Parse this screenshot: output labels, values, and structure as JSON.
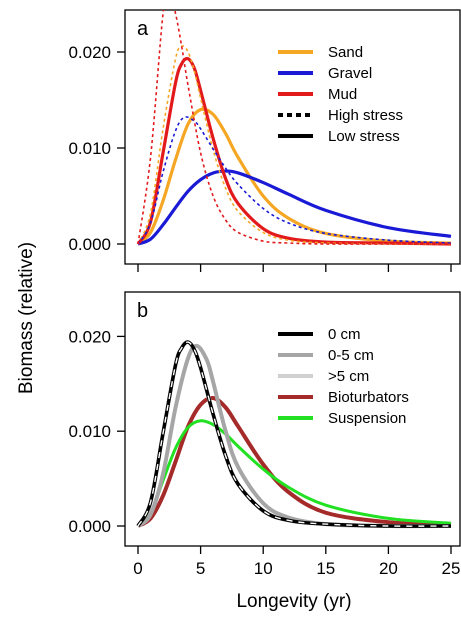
{
  "chart_data": [
    {
      "type": "line",
      "panel_label": "a",
      "xlim": [
        0,
        25
      ],
      "ylim": [
        0,
        0.025
      ],
      "xticks": [
        "0",
        "5",
        "10",
        "15",
        "20",
        "25"
      ],
      "xtick_values": [
        0,
        5,
        10,
        15,
        20,
        25
      ],
      "yticks": [
        "0.000",
        "0.010",
        "0.020"
      ],
      "ytick_values": [
        0,
        0.01,
        0.02
      ],
      "x_tick_labels_shown": false,
      "legend": [
        {
          "label": "Sand",
          "color": "#f5a623",
          "style": "solid"
        },
        {
          "label": "Gravel",
          "color": "#1a1ad6",
          "style": "solid"
        },
        {
          "label": "Mud",
          "color": "#e31a1c",
          "style": "solid"
        },
        {
          "label": "High stress",
          "color": "#000000",
          "style": "dashed"
        },
        {
          "label": "Low stress",
          "color": "#000000",
          "style": "solid"
        }
      ],
      "legend_position": "top-right",
      "series": [
        {
          "name": "Sand",
          "stress": "low",
          "color": "#f5a623",
          "dash": false,
          "width": 3.2,
          "x": [
            0,
            1,
            2,
            3,
            4,
            5,
            6,
            7,
            8,
            10,
            12,
            15,
            20,
            25
          ],
          "y": [
            0,
            0.0012,
            0.0045,
            0.0088,
            0.0125,
            0.014,
            0.0135,
            0.0115,
            0.009,
            0.005,
            0.0027,
            0.0011,
            0.0003,
            0.0001
          ]
        },
        {
          "name": "Gravel",
          "stress": "low",
          "color": "#1a1ad6",
          "dash": false,
          "width": 3.2,
          "x": [
            0,
            1,
            2,
            3,
            4,
            5,
            6,
            7,
            8,
            10,
            12,
            15,
            20,
            25
          ],
          "y": [
            0,
            0.0005,
            0.002,
            0.0038,
            0.0055,
            0.0067,
            0.0074,
            0.0076,
            0.0074,
            0.0064,
            0.0052,
            0.0035,
            0.0017,
            0.0008
          ]
        },
        {
          "name": "Mud",
          "stress": "low",
          "color": "#e31a1c",
          "dash": false,
          "width": 3.2,
          "x": [
            0,
            1,
            2,
            3,
            3.5,
            4,
            4.5,
            5,
            6,
            7,
            8,
            10,
            12,
            15,
            20,
            25
          ],
          "y": [
            0,
            0.0023,
            0.0095,
            0.0168,
            0.0188,
            0.0193,
            0.0183,
            0.016,
            0.011,
            0.0068,
            0.0042,
            0.0016,
            0.0006,
            0.0002,
            0.0001,
            0.0
          ]
        },
        {
          "name": "Sand",
          "stress": "high",
          "color": "#f5a623",
          "dash": true,
          "width": 1.6,
          "x": [
            0,
            1,
            2,
            3,
            3.5,
            4,
            4.5,
            5,
            6,
            7,
            8,
            10,
            12,
            15,
            20,
            25
          ],
          "y": [
            0,
            0.0032,
            0.012,
            0.0193,
            0.0206,
            0.02,
            0.018,
            0.0152,
            0.0098,
            0.0058,
            0.0034,
            0.0012,
            0.0004,
            0.0001,
            0.0,
            0.0
          ]
        },
        {
          "name": "Gravel",
          "stress": "high",
          "color": "#1a1ad6",
          "dash": true,
          "width": 1.6,
          "x": [
            0,
            1,
            2,
            3,
            3.7,
            4.5,
            5,
            6,
            7,
            8,
            10,
            12,
            15,
            20,
            25
          ],
          "y": [
            0,
            0.0022,
            0.0075,
            0.0118,
            0.0132,
            0.0128,
            0.012,
            0.0099,
            0.0079,
            0.0062,
            0.0037,
            0.0022,
            0.0011,
            0.0004,
            0.0001
          ]
        },
        {
          "name": "Mud",
          "stress": "high",
          "color": "#e31a1c",
          "dash": true,
          "width": 1.6,
          "x": [
            0,
            1,
            2,
            2.5,
            3,
            3.5,
            4,
            5,
            6,
            7,
            8,
            10,
            12,
            15,
            20,
            25
          ],
          "y": [
            0,
            0.009,
            0.024,
            0.0262,
            0.024,
            0.0205,
            0.0165,
            0.0095,
            0.005,
            0.0025,
            0.0012,
            0.0003,
            0.0001,
            0.0,
            0.0,
            0.0
          ]
        }
      ]
    },
    {
      "type": "line",
      "panel_label": "b",
      "xlim": [
        0,
        25
      ],
      "ylim": [
        0,
        0.025
      ],
      "xticks": [
        "0",
        "5",
        "10",
        "15",
        "20",
        "25"
      ],
      "xtick_values": [
        0,
        5,
        10,
        15,
        20,
        25
      ],
      "yticks": [
        "0.000",
        "0.010",
        "0.020"
      ],
      "ytick_values": [
        0,
        0.01,
        0.02
      ],
      "x_tick_labels_shown": true,
      "xlabel": "Longevity (yr)",
      "legend": [
        {
          "label": "0 cm",
          "color": "#000000",
          "style": "solid"
        },
        {
          "label": "0-5 cm",
          "color": "#a6a6a6",
          "style": "solid"
        },
        {
          "label": ">5 cm",
          "color": "#d0d0d0",
          "style": "solid"
        },
        {
          "label": "Bioturbators",
          "color": "#a52a2a",
          "style": "solid"
        },
        {
          "label": "Suspension",
          "color": "#22e022",
          "style": "solid"
        }
      ],
      "legend_position": "top-right",
      "series": [
        {
          "name": "Bioturbators",
          "color": "#a52a2a",
          "dash": false,
          "width": 4,
          "x": [
            0,
            1,
            2,
            3,
            4,
            5,
            6,
            7,
            8,
            10,
            12,
            15,
            20,
            25
          ],
          "y": [
            0,
            0.0008,
            0.0032,
            0.0068,
            0.0105,
            0.0128,
            0.0135,
            0.0125,
            0.0105,
            0.0065,
            0.0036,
            0.0014,
            0.0004,
            0.0001
          ]
        },
        {
          "name": "Suspension",
          "color": "#22e022",
          "dash": false,
          "width": 3,
          "x": [
            0,
            1,
            2,
            3,
            4,
            5,
            6,
            7,
            8,
            10,
            12,
            15,
            20,
            25
          ],
          "y": [
            0,
            0.0013,
            0.0048,
            0.0082,
            0.0104,
            0.0111,
            0.0107,
            0.0097,
            0.0084,
            0.006,
            0.0041,
            0.0022,
            0.0008,
            0.0003
          ]
        },
        {
          "name": ">5 cm",
          "color": "#d0d0d0",
          "dash": false,
          "width": 4,
          "x": [
            0,
            1,
            2,
            3,
            3.5,
            4,
            4.5,
            5,
            6,
            7,
            8,
            10,
            12,
            15,
            20,
            25
          ],
          "y": [
            0,
            0.0025,
            0.0098,
            0.017,
            0.0188,
            0.0194,
            0.0186,
            0.0167,
            0.0118,
            0.0074,
            0.0044,
            0.0016,
            0.0006,
            0.0002,
            0.0,
            0.0
          ]
        },
        {
          "name": "0-5 cm",
          "color": "#a6a6a6",
          "dash": false,
          "width": 4,
          "x": [
            0,
            1,
            2,
            3,
            4,
            4.7,
            5.5,
            6,
            7,
            8,
            10,
            12,
            15,
            20,
            25
          ],
          "y": [
            0,
            0.0012,
            0.0055,
            0.0125,
            0.0177,
            0.019,
            0.0175,
            0.0152,
            0.01,
            0.0062,
            0.0024,
            0.0009,
            0.0002,
            0.0,
            0.0
          ]
        },
        {
          "name": "0 cm",
          "color": "#000000",
          "dash": false,
          "width": 3.5,
          "x": [
            0,
            1,
            2,
            3,
            3.5,
            4,
            4.5,
            5,
            6,
            7,
            8,
            10,
            12,
            15,
            20,
            25
          ],
          "y": [
            0,
            0.0025,
            0.0098,
            0.017,
            0.0188,
            0.0194,
            0.0186,
            0.0167,
            0.0118,
            0.0074,
            0.0044,
            0.0016,
            0.0006,
            0.0002,
            0.0,
            0.0
          ],
          "overlay_dash_color": "#ffffff"
        }
      ]
    }
  ],
  "shared": {
    "ylabel": "Biomass (relative)",
    "xlabel": "Longevity (yr)"
  }
}
